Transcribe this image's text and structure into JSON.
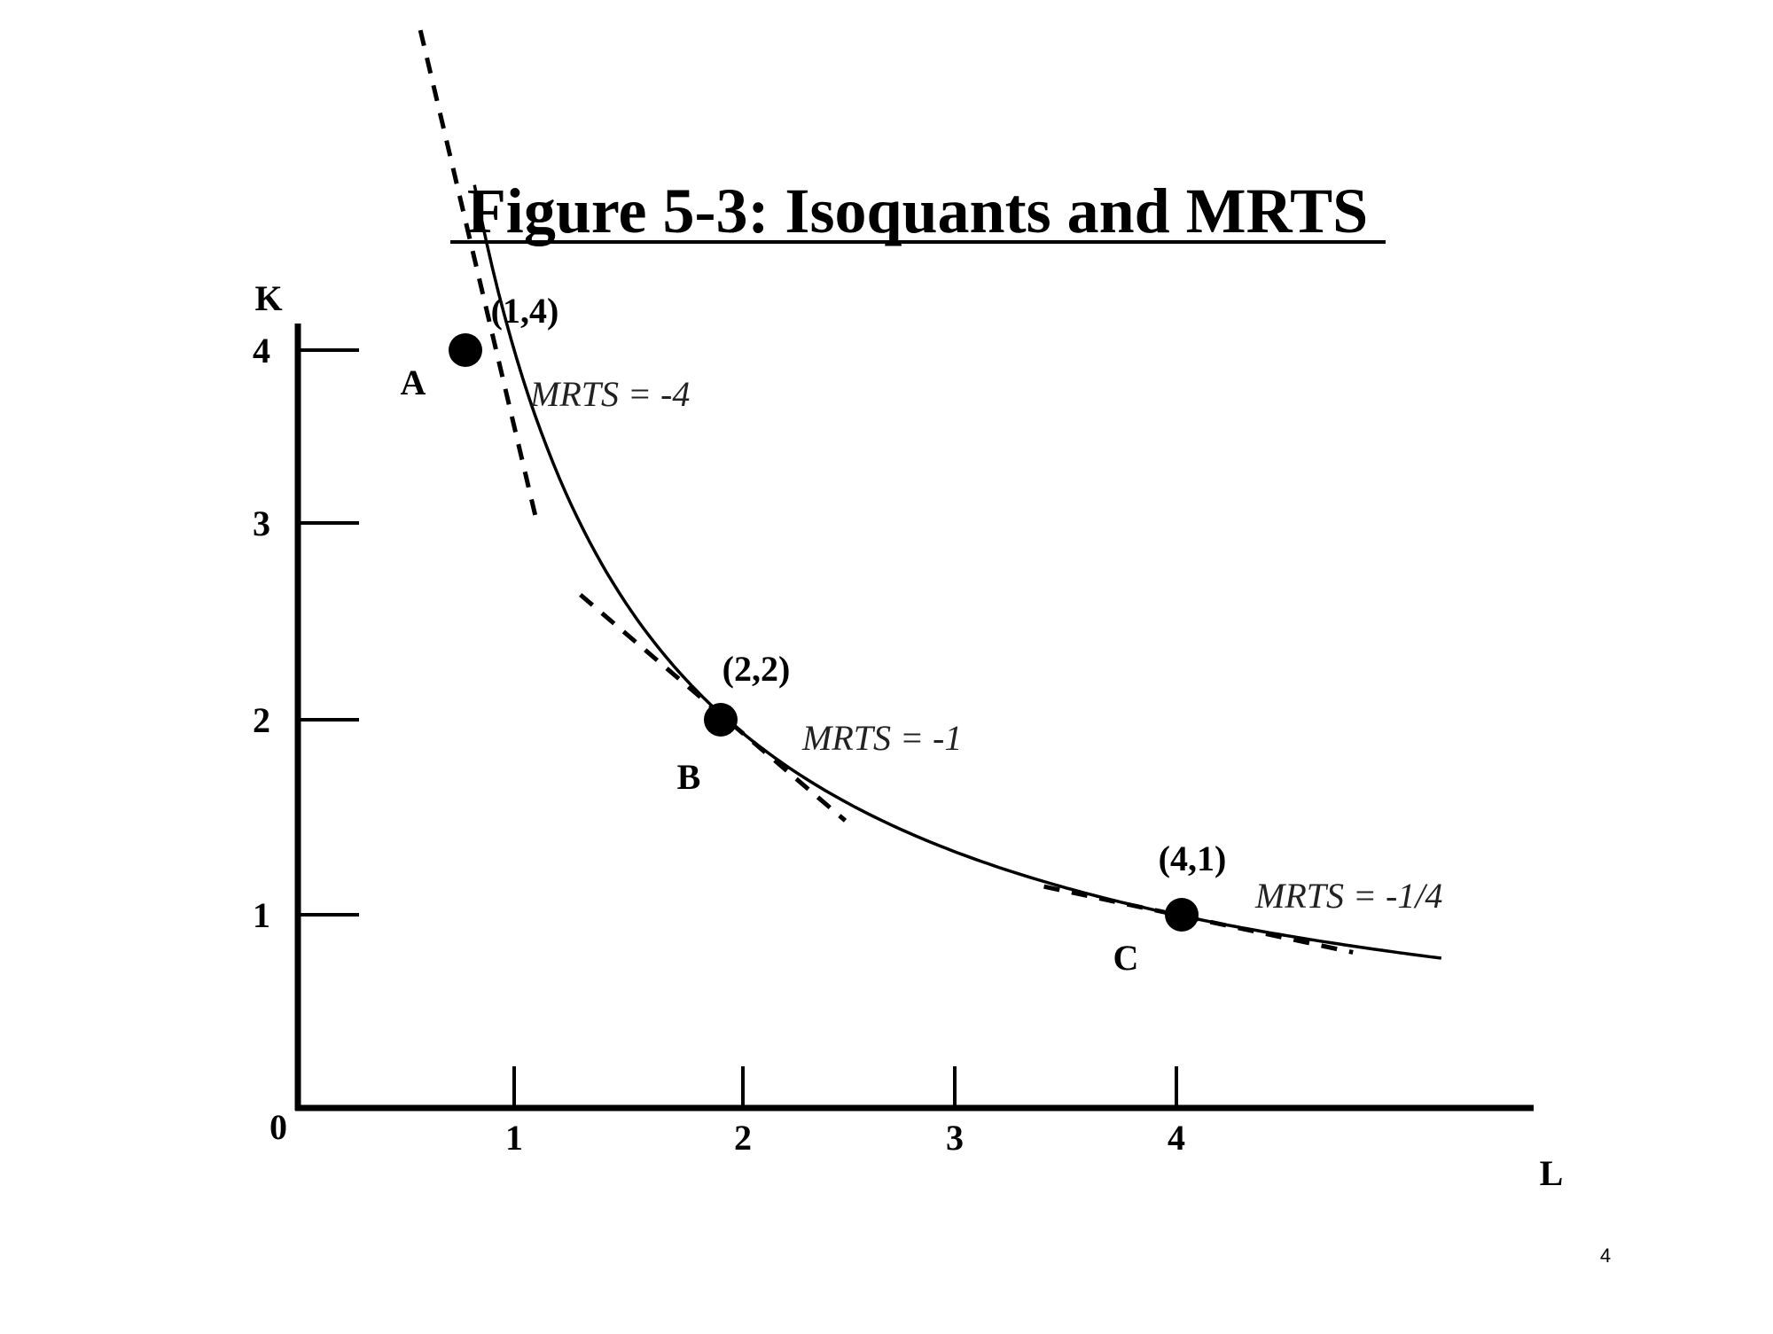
{
  "slide": {
    "page_number": "4"
  },
  "chart_data": {
    "type": "line",
    "title": "Figure 5-3: Isoquants and MRTS",
    "xlabel": "L",
    "ylabel": "K",
    "origin_label": "0",
    "x_ticks": [
      "1",
      "2",
      "3",
      "4"
    ],
    "y_ticks": [
      "1",
      "2",
      "3",
      "4"
    ],
    "x_tick_values": [
      1,
      2,
      3,
      4
    ],
    "y_tick_values": [
      1,
      2,
      3,
      4
    ],
    "curve": {
      "equation": "K = 4 / L",
      "x_start": 0.85,
      "x_end": 5.2
    },
    "points": [
      {
        "label": "A",
        "coord_label": "(1,4)",
        "x": 1,
        "y": 4,
        "mrts_label": "MRTS = -4",
        "slope": -4
      },
      {
        "label": "B",
        "coord_label": "(2,2)",
        "x": 2,
        "y": 2,
        "mrts_label": "MRTS = -1",
        "slope": -1
      },
      {
        "label": "C",
        "coord_label": "(4,1)",
        "x": 4,
        "y": 1,
        "mrts_label": "MRTS = -1/4",
        "slope": -0.25
      }
    ],
    "tangent_lines": "dashed",
    "grid": false,
    "legend": "none"
  }
}
